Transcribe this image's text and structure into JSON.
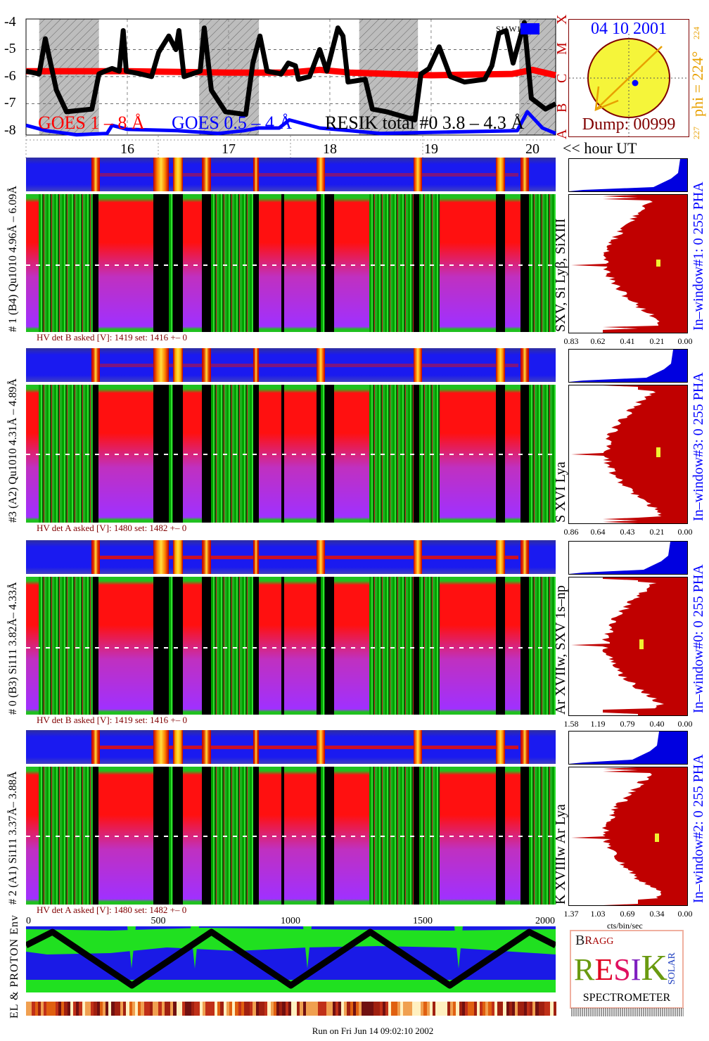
{
  "goes_plot": {
    "y_ticks": [
      "-4",
      "-5",
      "-6",
      "-7",
      "-8"
    ],
    "class_letters": [
      "A",
      "B",
      "C",
      "M",
      "X"
    ],
    "hour_ticks": [
      "16",
      "17",
      "18",
      "19",
      "20"
    ],
    "hour_axis_label": "<< hour UT",
    "legend": {
      "goes_long": "GOES 1 – 8 Å",
      "goes_short": "GOES 0.5 – 4 Å",
      "resik": "RESIK total #0  3.8 – 4.3 Å"
    },
    "region_label": "S11W16"
  },
  "sun_panel": {
    "date": "04 10 2001",
    "dump": "Dump: 00999",
    "phi_label": "phi = 224°",
    "phi_top": "224",
    "phi_bottom": "227"
  },
  "panels": [
    {
      "left_label": "# 1 (B4) Qu1010 4.96Å – 6.09Å",
      "line_label": "SXV, Si Lyβ, SiXIII",
      "window_label": "In–window#1:   0 255  PHA",
      "hv": "HV det B asked [V]:  1419 set:  1416  +–     0",
      "x_ticks": [
        "0.83",
        "0.62",
        "0.41",
        "0.21",
        "0.00"
      ]
    },
    {
      "left_label": "#3 (A2) Qu1010  4.31Å – 4.89Å",
      "line_label": "S XVI Lya",
      "window_label": "In–window#3:   0 255  PHA",
      "hv": "HV det A asked [V]:  1480 set:  1482  +–     0",
      "x_ticks": [
        "0.86",
        "0.64",
        "0.43",
        "0.21",
        "0.00"
      ]
    },
    {
      "left_label": "# 0 (B3) Si111  3.82Å– 4.33Å",
      "line_label": "Ar XVIIw,  SXV 1s–np",
      "window_label": "In–window#0:   0 255  PHA",
      "hv": "HV det B asked [V]:  1419 set:  1416  +–     0",
      "x_ticks": [
        "1.58",
        "1.19",
        "0.79",
        "0.40",
        "0.00"
      ]
    },
    {
      "left_label": "# 2 (A1) Si111  3.37Å– 3.88Å",
      "line_label": "K XVIIIw  Ar Lya",
      "window_label": "In–window#2:   0 255  PHA",
      "hv": "HV det A asked [V]:  1480 set:  1482  +–     0",
      "x_ticks": [
        "1.37",
        "1.03",
        "0.69",
        "0.34",
        "0.00"
      ]
    }
  ],
  "hist_unit": "cts/bin/sec",
  "env": {
    "x_ticks": [
      "0",
      "500",
      "1000",
      "1500",
      "2000"
    ],
    "label": "EL & PROTON Env"
  },
  "logo": {
    "letters": "BRAGG RESIK SOLAR",
    "subtitle": "SPECTROMETER"
  },
  "footer": "Run on Fri Jun 14 09:02:10 2002",
  "colors": {
    "goes_long": "#ff0000",
    "goes_short": "#0000ff",
    "resik": "#000000",
    "hist_fill": "#c00000",
    "pha_fill": "#0000e0",
    "sun": "#f5f53a",
    "phi": "#e8a000",
    "dump": "#800000"
  },
  "chart_data": [
    {
      "type": "line",
      "xlabel": "<< hour UT",
      "xlim": [
        15.0,
        20.23
      ],
      "ylim": [
        -8.16,
        -3.87
      ],
      "grid": true,
      "legend": "bottom",
      "series": [
        {
          "name": "GOES 1 – 8 Å",
          "color": "#ff0000",
          "points": [
            [
              15.0,
              -5.8
            ],
            [
              16.0,
              -5.8
            ],
            [
              17.0,
              -5.85
            ],
            [
              17.6,
              -5.85
            ],
            [
              17.9,
              -5.75
            ],
            [
              18.2,
              -5.85
            ],
            [
              18.6,
              -5.9
            ],
            [
              19.0,
              -5.95
            ],
            [
              19.8,
              -5.9
            ],
            [
              20.0,
              -5.75
            ],
            [
              20.23,
              -5.95
            ]
          ]
        },
        {
          "name": "GOES 0.5 – 4 Å",
          "color": "#0000ff",
          "points": [
            [
              15.0,
              -7.8
            ],
            [
              15.2,
              -8.0
            ],
            [
              15.5,
              -8.15
            ],
            [
              15.8,
              -8.1
            ],
            [
              15.85,
              -7.8
            ],
            [
              16.0,
              -7.95
            ],
            [
              16.5,
              -8.0
            ],
            [
              16.9,
              -8.1
            ],
            [
              17.15,
              -8.0
            ],
            [
              17.3,
              -7.9
            ],
            [
              17.5,
              -7.9
            ],
            [
              17.6,
              -7.6
            ],
            [
              17.9,
              -7.9
            ],
            [
              18.2,
              -8.0
            ],
            [
              18.5,
              -8.1
            ],
            [
              19.85,
              -8.0
            ],
            [
              19.95,
              -7.3
            ],
            [
              20.1,
              -7.9
            ],
            [
              20.23,
              -8.1
            ]
          ]
        },
        {
          "name": "RESIK total #0  3.8 – 4.3 Å",
          "color": "#000000",
          "points": [
            [
              15.0,
              -5.8
            ],
            [
              15.13,
              -5.9
            ],
            [
              15.19,
              -4.6
            ],
            [
              15.3,
              -6.5
            ],
            [
              15.4,
              -7.3
            ],
            [
              15.65,
              -7.2
            ],
            [
              15.72,
              -5.9
            ],
            [
              15.78,
              -5.8
            ],
            [
              15.85,
              -5.7
            ],
            [
              15.92,
              -5.8
            ],
            [
              15.96,
              -4.3
            ],
            [
              15.99,
              -5.8
            ],
            [
              16.13,
              -5.9
            ],
            [
              16.24,
              -6.0
            ],
            [
              16.31,
              -5.1
            ],
            [
              16.41,
              -4.5
            ],
            [
              16.48,
              -5.0
            ],
            [
              16.51,
              -4.3
            ],
            [
              16.56,
              -6.0
            ],
            [
              16.72,
              -5.8
            ],
            [
              16.76,
              -4.2
            ],
            [
              16.83,
              -6.5
            ],
            [
              16.97,
              -7.3
            ],
            [
              17.17,
              -7.4
            ],
            [
              17.24,
              -5.5
            ],
            [
              17.31,
              -4.5
            ],
            [
              17.38,
              -5.8
            ],
            [
              17.52,
              -5.9
            ],
            [
              17.59,
              -5.5
            ],
            [
              17.66,
              -5.6
            ],
            [
              17.69,
              -6.1
            ],
            [
              17.8,
              -6.0
            ],
            [
              17.9,
              -5.0
            ],
            [
              17.97,
              -5.8
            ],
            [
              18.08,
              -4.2
            ],
            [
              18.13,
              -4.5
            ],
            [
              18.18,
              -6.2
            ],
            [
              18.35,
              -6.1
            ],
            [
              18.42,
              -7.2
            ],
            [
              18.56,
              -7.3
            ],
            [
              18.84,
              -7.6
            ],
            [
              18.9,
              -5.9
            ],
            [
              18.98,
              -5.7
            ],
            [
              19.08,
              -4.9
            ],
            [
              19.19,
              -6.0
            ],
            [
              19.33,
              -6.2
            ],
            [
              19.53,
              -6.1
            ],
            [
              19.6,
              -5.6
            ],
            [
              19.67,
              -4.4
            ],
            [
              19.74,
              -4.3
            ],
            [
              19.81,
              -5.5
            ],
            [
              19.92,
              -4.0
            ],
            [
              19.99,
              -6.8
            ],
            [
              20.13,
              -7.2
            ],
            [
              20.23,
              -7.0
            ]
          ]
        }
      ],
      "shaded_hours": [
        [
          15.13,
          15.72
        ],
        [
          16.71,
          17.3
        ],
        [
          18.29,
          18.87
        ],
        [
          19.87,
          20.23
        ]
      ]
    },
    {
      "type": "line",
      "xlim": [
        0,
        2000
      ],
      "x_ticks": [
        0,
        500,
        1000,
        1500,
        2000
      ],
      "series": [
        {
          "points": [
            [
              0,
              0.75
            ],
            [
              100,
              1.0
            ],
            [
              400,
              0.0
            ],
            [
              700,
              1.0
            ],
            [
              1000,
              0.0
            ],
            [
              1300,
              1.0
            ],
            [
              1600,
              0.0
            ],
            [
              1900,
              1.0
            ],
            [
              2000,
              0.75
            ]
          ]
        }
      ]
    }
  ]
}
